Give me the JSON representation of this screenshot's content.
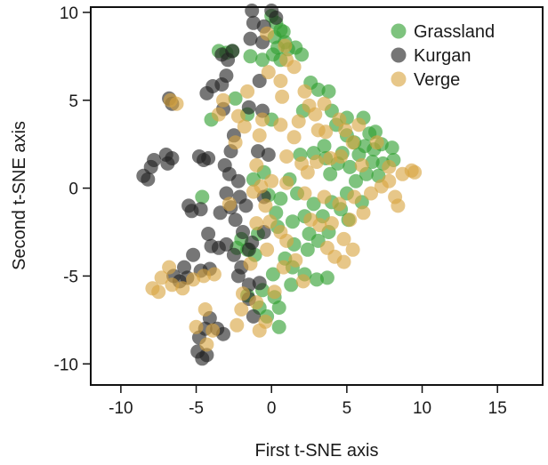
{
  "chart_data": {
    "type": "scatter",
    "xlabel": "First t-SNE axis",
    "ylabel": "Second t-SNE axis",
    "xlim": [
      -12,
      18
    ],
    "ylim": [
      -11.2,
      10.3
    ],
    "xticks": [
      -10,
      -5,
      0,
      5,
      10,
      15
    ],
    "yticks": [
      -10,
      -5,
      0,
      5,
      10
    ],
    "grid": false,
    "legend_position": "top-right",
    "series": [
      {
        "name": "Grassland",
        "color": "#2f9e2f",
        "points": [
          [
            0.0,
            9.8
          ],
          [
            0.3,
            9.4
          ],
          [
            0.6,
            9.0
          ],
          [
            0.2,
            8.6
          ],
          [
            0.8,
            8.9
          ],
          [
            0.4,
            8.0
          ],
          [
            0.9,
            8.3
          ],
          [
            0.1,
            7.6
          ],
          [
            0.6,
            7.3
          ],
          [
            1.1,
            7.9
          ],
          [
            -3.5,
            7.8
          ],
          [
            -3.0,
            7.7
          ],
          [
            -2.6,
            7.8
          ],
          [
            -1.4,
            7.5
          ],
          [
            -0.6,
            7.3
          ],
          [
            2.0,
            7.6
          ],
          [
            1.6,
            8.0
          ],
          [
            2.6,
            6.0
          ],
          [
            3.1,
            5.6
          ],
          [
            3.8,
            5.5
          ],
          [
            4.0,
            4.4
          ],
          [
            2.1,
            4.4
          ],
          [
            -4.0,
            3.9
          ],
          [
            -2.4,
            5.1
          ],
          [
            -1.6,
            4.2
          ],
          [
            0.0,
            3.9
          ],
          [
            5.0,
            3.0
          ],
          [
            5.5,
            2.6
          ],
          [
            6.2,
            2.4
          ],
          [
            6.8,
            2.2
          ],
          [
            7.3,
            2.5
          ],
          [
            8.0,
            2.3
          ],
          [
            6.5,
            3.1
          ],
          [
            6.1,
            4.0
          ],
          [
            4.7,
            2.0
          ],
          [
            5.8,
            1.9
          ],
          [
            6.7,
            1.5
          ],
          [
            7.4,
            1.4
          ],
          [
            8.1,
            1.6
          ],
          [
            5.2,
            1.2
          ],
          [
            4.4,
            1.4
          ],
          [
            3.9,
            0.8
          ],
          [
            5.6,
            0.4
          ],
          [
            6.3,
            0.8
          ],
          [
            7.1,
            0.7
          ],
          [
            5.0,
            -0.3
          ],
          [
            4.0,
            -0.8
          ],
          [
            4.6,
            -1.2
          ],
          [
            6.0,
            -0.8
          ],
          [
            5.1,
            -1.8
          ],
          [
            3.4,
            -1.6
          ],
          [
            2.8,
            -0.9
          ],
          [
            2.2,
            -1.6
          ],
          [
            1.7,
            -0.3
          ],
          [
            1.2,
            0.5
          ],
          [
            0.6,
            -0.6
          ],
          [
            1.4,
            -1.9
          ],
          [
            2.5,
            -2.6
          ],
          [
            3.8,
            -2.5
          ],
          [
            3.1,
            -3.0
          ],
          [
            2.4,
            -3.5
          ],
          [
            1.5,
            -3.2
          ],
          [
            0.4,
            -2.2
          ],
          [
            0.9,
            -4.0
          ],
          [
            1.4,
            -4.5
          ],
          [
            2.2,
            -4.9
          ],
          [
            3.0,
            -5.2
          ],
          [
            3.7,
            -5.1
          ],
          [
            0.1,
            -4.9
          ],
          [
            -0.6,
            -5.8
          ],
          [
            0.2,
            -6.2
          ],
          [
            1.3,
            -5.5
          ],
          [
            -1.1,
            -3.8
          ],
          [
            -1.6,
            -3.5
          ],
          [
            -2.0,
            -2.9
          ],
          [
            -0.9,
            -2.6
          ],
          [
            0.5,
            -6.8
          ],
          [
            -0.3,
            -7.3
          ],
          [
            0.5,
            -7.9
          ],
          [
            -0.8,
            -6.8
          ],
          [
            -0.5,
            0.9
          ],
          [
            -0.2,
            -0.4
          ],
          [
            0.3,
            -1.4
          ],
          [
            2.8,
            2.0
          ],
          [
            3.5,
            2.4
          ],
          [
            1.9,
            1.9
          ],
          [
            -1.2,
            0.5
          ],
          [
            3.6,
            1.7
          ],
          [
            4.3,
            3.6
          ],
          [
            5.0,
            4.0
          ],
          [
            -4.6,
            -0.5
          ],
          [
            -2.3,
            -3.4
          ],
          [
            -1.6,
            -6.1
          ],
          [
            6.9,
            3.2
          ]
        ]
      },
      {
        "name": "Kurgan",
        "color": "#222222",
        "points": [
          [
            -1.3,
            10.1
          ],
          [
            0.0,
            10.1
          ],
          [
            -1.2,
            9.4
          ],
          [
            0.3,
            9.7
          ],
          [
            -0.5,
            9.2
          ],
          [
            -1.4,
            8.5
          ],
          [
            -0.6,
            8.3
          ],
          [
            -2.6,
            7.8
          ],
          [
            -2.9,
            7.3
          ],
          [
            -3.3,
            7.6
          ],
          [
            -3.0,
            6.4
          ],
          [
            -3.3,
            5.9
          ],
          [
            -3.2,
            4.5
          ],
          [
            -3.9,
            5.8
          ],
          [
            -4.3,
            5.4
          ],
          [
            -1.5,
            4.6
          ],
          [
            -0.6,
            4.4
          ],
          [
            -0.8,
            6.1
          ],
          [
            -6.8,
            5.1
          ],
          [
            -6.6,
            4.8
          ],
          [
            -7.0,
            1.9
          ],
          [
            -6.6,
            1.7
          ],
          [
            -6.9,
            1.4
          ],
          [
            -8.5,
            0.7
          ],
          [
            -8.2,
            0.5
          ],
          [
            -8.0,
            1.2
          ],
          [
            -7.8,
            1.6
          ],
          [
            -4.8,
            1.8
          ],
          [
            -4.5,
            1.6
          ],
          [
            -4.2,
            1.7
          ],
          [
            -2.7,
            2.1
          ],
          [
            -3.1,
            1.3
          ],
          [
            -2.8,
            0.8
          ],
          [
            -2.2,
            0.4
          ],
          [
            -0.9,
            2.1
          ],
          [
            -0.2,
            1.9
          ],
          [
            -2.5,
            3.0
          ],
          [
            -0.5,
            -0.5
          ],
          [
            -1.7,
            -1.0
          ],
          [
            -2.1,
            -0.5
          ],
          [
            -3.0,
            -0.3
          ],
          [
            -2.7,
            -1.1
          ],
          [
            -2.4,
            -1.8
          ],
          [
            -3.4,
            -1.4
          ],
          [
            -1.9,
            -2.5
          ],
          [
            -1.5,
            -3.5
          ],
          [
            -5.3,
            -1.3
          ],
          [
            -5.5,
            -1.0
          ],
          [
            -4.7,
            -1.2
          ],
          [
            -4.2,
            -2.6
          ],
          [
            -4.0,
            -3.3
          ],
          [
            -3.5,
            -3.4
          ],
          [
            -3.0,
            -3.2
          ],
          [
            -2.5,
            -3.8
          ],
          [
            -2.0,
            -4.5
          ],
          [
            -5.2,
            -3.8
          ],
          [
            -5.8,
            -4.5
          ],
          [
            -6.1,
            -5.3
          ],
          [
            -6.5,
            -5.0
          ],
          [
            -5.6,
            -5.1
          ],
          [
            -4.7,
            -4.7
          ],
          [
            -4.1,
            -4.6
          ],
          [
            -2.2,
            -5.0
          ],
          [
            -1.5,
            -5.5
          ],
          [
            -0.8,
            -5.4
          ],
          [
            -4.1,
            -7.4
          ],
          [
            -4.4,
            -8.0
          ],
          [
            -4.8,
            -8.5
          ],
          [
            -3.6,
            -8.0
          ],
          [
            -3.2,
            -8.3
          ],
          [
            -4.9,
            -9.3
          ],
          [
            -4.6,
            -9.7
          ],
          [
            -4.3,
            -9.5
          ],
          [
            -1.2,
            -7.3
          ],
          [
            -1.5,
            -6.3
          ],
          [
            -0.5,
            -2.5
          ],
          [
            -1.3,
            -3.1
          ]
        ]
      },
      {
        "name": "Verge",
        "color": "#d9a541",
        "points": [
          [
            0.9,
            8.1
          ],
          [
            1.0,
            7.3
          ],
          [
            1.5,
            6.9
          ],
          [
            -0.2,
            6.6
          ],
          [
            0.6,
            6.1
          ],
          [
            -0.3,
            8.8
          ],
          [
            2.5,
            4.7
          ],
          [
            3.5,
            4.8
          ],
          [
            2.9,
            4.2
          ],
          [
            1.8,
            3.8
          ],
          [
            -2.2,
            4.1
          ],
          [
            -1.8,
            3.5
          ],
          [
            -0.6,
            3.9
          ],
          [
            -0.8,
            3.0
          ],
          [
            0.6,
            3.6
          ],
          [
            1.5,
            2.9
          ],
          [
            3.1,
            3.3
          ],
          [
            3.6,
            3.2
          ],
          [
            4.5,
            3.9
          ],
          [
            4.9,
            3.3
          ],
          [
            -6.7,
            5.0
          ],
          [
            -6.3,
            4.8
          ],
          [
            -3.2,
            5.0
          ],
          [
            -3.5,
            4.2
          ],
          [
            1.0,
            1.8
          ],
          [
            2.0,
            1.4
          ],
          [
            2.4,
            0.9
          ],
          [
            3.0,
            1.5
          ],
          [
            3.9,
            1.7
          ],
          [
            4.6,
            1.8
          ],
          [
            5.4,
            2.6
          ],
          [
            6.0,
            1.3
          ],
          [
            7.0,
            2.6
          ],
          [
            7.8,
            1.2
          ],
          [
            8.7,
            0.8
          ],
          [
            9.3,
            1.0
          ],
          [
            9.5,
            0.9
          ],
          [
            8.2,
            -0.5
          ],
          [
            8.4,
            -1.0
          ],
          [
            7.3,
            0.1
          ],
          [
            6.6,
            -0.3
          ],
          [
            5.5,
            -0.5
          ],
          [
            4.5,
            -0.9
          ],
          [
            3.5,
            -0.5
          ],
          [
            2.2,
            -0.3
          ],
          [
            1.0,
            0.3
          ],
          [
            0.0,
            0.4
          ],
          [
            -0.7,
            0.1
          ],
          [
            -1.2,
            -0.2
          ],
          [
            -0.4,
            -1.0
          ],
          [
            -1.0,
            -2.0
          ],
          [
            -0.1,
            -1.9
          ],
          [
            0.6,
            -2.5
          ],
          [
            1.0,
            -3.0
          ],
          [
            -0.3,
            -3.5
          ],
          [
            0.8,
            -4.5
          ],
          [
            -1.4,
            -4.3
          ],
          [
            -1.9,
            -6.0
          ],
          [
            -1.0,
            -6.5
          ],
          [
            0.2,
            -5.9
          ],
          [
            -2.0,
            -6.9
          ],
          [
            -2.3,
            -7.8
          ],
          [
            -0.8,
            -8.1
          ],
          [
            -0.4,
            -7.6
          ],
          [
            -4.3,
            -8.9
          ],
          [
            -3.9,
            -8.1
          ],
          [
            -4.4,
            -6.9
          ],
          [
            -5.0,
            -7.9
          ],
          [
            -6.8,
            -4.5
          ],
          [
            -7.3,
            -5.1
          ],
          [
            -7.9,
            -5.7
          ],
          [
            -7.5,
            -5.9
          ],
          [
            -6.6,
            -5.5
          ],
          [
            -5.9,
            -5.7
          ],
          [
            -5.2,
            -5.2
          ],
          [
            -4.5,
            -5.0
          ],
          [
            -3.8,
            -4.9
          ],
          [
            4.0,
            -2.0
          ],
          [
            4.8,
            -2.9
          ],
          [
            5.4,
            -3.5
          ],
          [
            4.2,
            -3.9
          ],
          [
            4.8,
            -4.2
          ],
          [
            3.7,
            -3.4
          ],
          [
            3.2,
            -2.1
          ],
          [
            2.6,
            -1.8
          ],
          [
            5.2,
            -1.8
          ],
          [
            6.1,
            -1.4
          ],
          [
            -2.4,
            2.6
          ],
          [
            -1.0,
            1.3
          ],
          [
            -2.8,
            -0.9
          ],
          [
            1.6,
            -4.1
          ],
          [
            2.1,
            -5.3
          ],
          [
            -1.6,
            5.5
          ],
          [
            0.7,
            5.2
          ],
          [
            2.2,
            5.5
          ],
          [
            5.8,
            3.6
          ],
          [
            7.8,
            0.4
          ]
        ]
      }
    ]
  }
}
